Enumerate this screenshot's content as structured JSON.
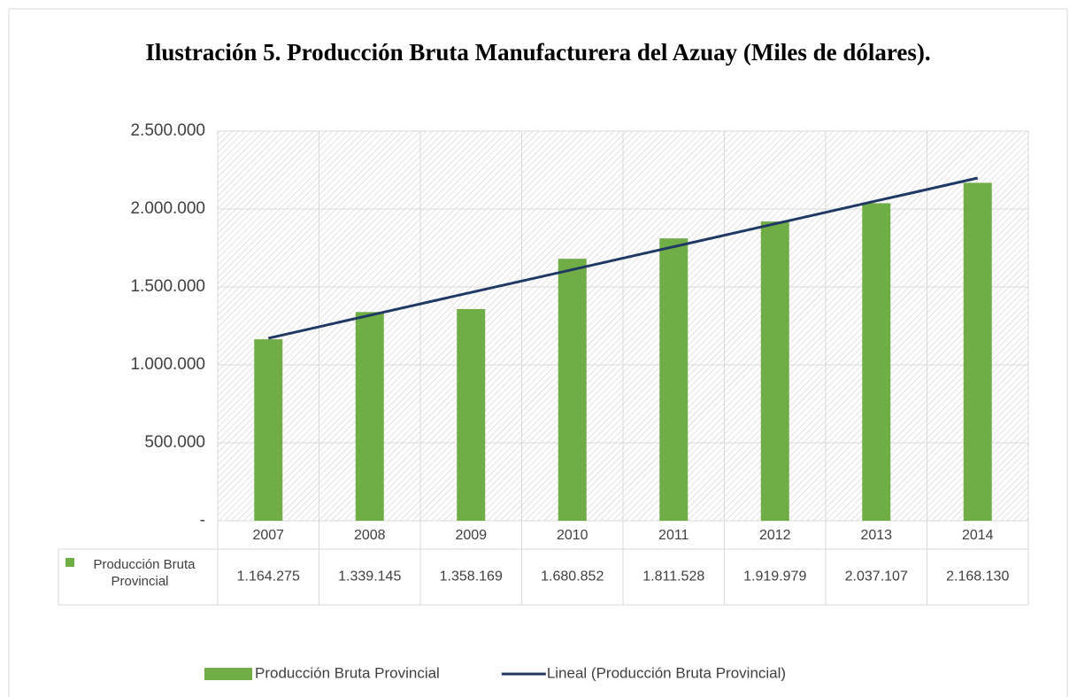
{
  "chart_data": {
    "type": "bar",
    "title": "Ilustración 5. Producción Bruta Manufacturera del Azuay (Miles de dólares).",
    "categories": [
      "2007",
      "2008",
      "2009",
      "2010",
      "2011",
      "2012",
      "2013",
      "2014"
    ],
    "series": [
      {
        "name": "Producción Bruta Provincial",
        "color": "#70ad47",
        "values": [
          1164275,
          1339145,
          1358169,
          1680852,
          1811528,
          1919979,
          2037107,
          2168130
        ],
        "value_labels": [
          "1.164.275",
          "1.339.145",
          "1.358.169",
          "1.680.852",
          "1.811.528",
          "1.919.979",
          "2.037.107",
          "2.168.130"
        ]
      },
      {
        "name": "Lineal (Producción Bruta Provincial)",
        "type": "line",
        "color": "#1f3864",
        "values": [
          1171000,
          1318000,
          1465000,
          1611000,
          1758000,
          1905000,
          2052000,
          2199000
        ]
      }
    ],
    "ylim": [
      0,
      2500000
    ],
    "yticks": [
      {
        "value": 0,
        "label": "-"
      },
      {
        "value": 500000,
        "label": "500.000"
      },
      {
        "value": 1000000,
        "label": "1.000.000"
      },
      {
        "value": 1500000,
        "label": "1.500.000"
      },
      {
        "value": 2000000,
        "label": "2.000.000"
      },
      {
        "value": 2500000,
        "label": "2.500.000"
      }
    ],
    "grid": true,
    "legend": "bottom"
  }
}
